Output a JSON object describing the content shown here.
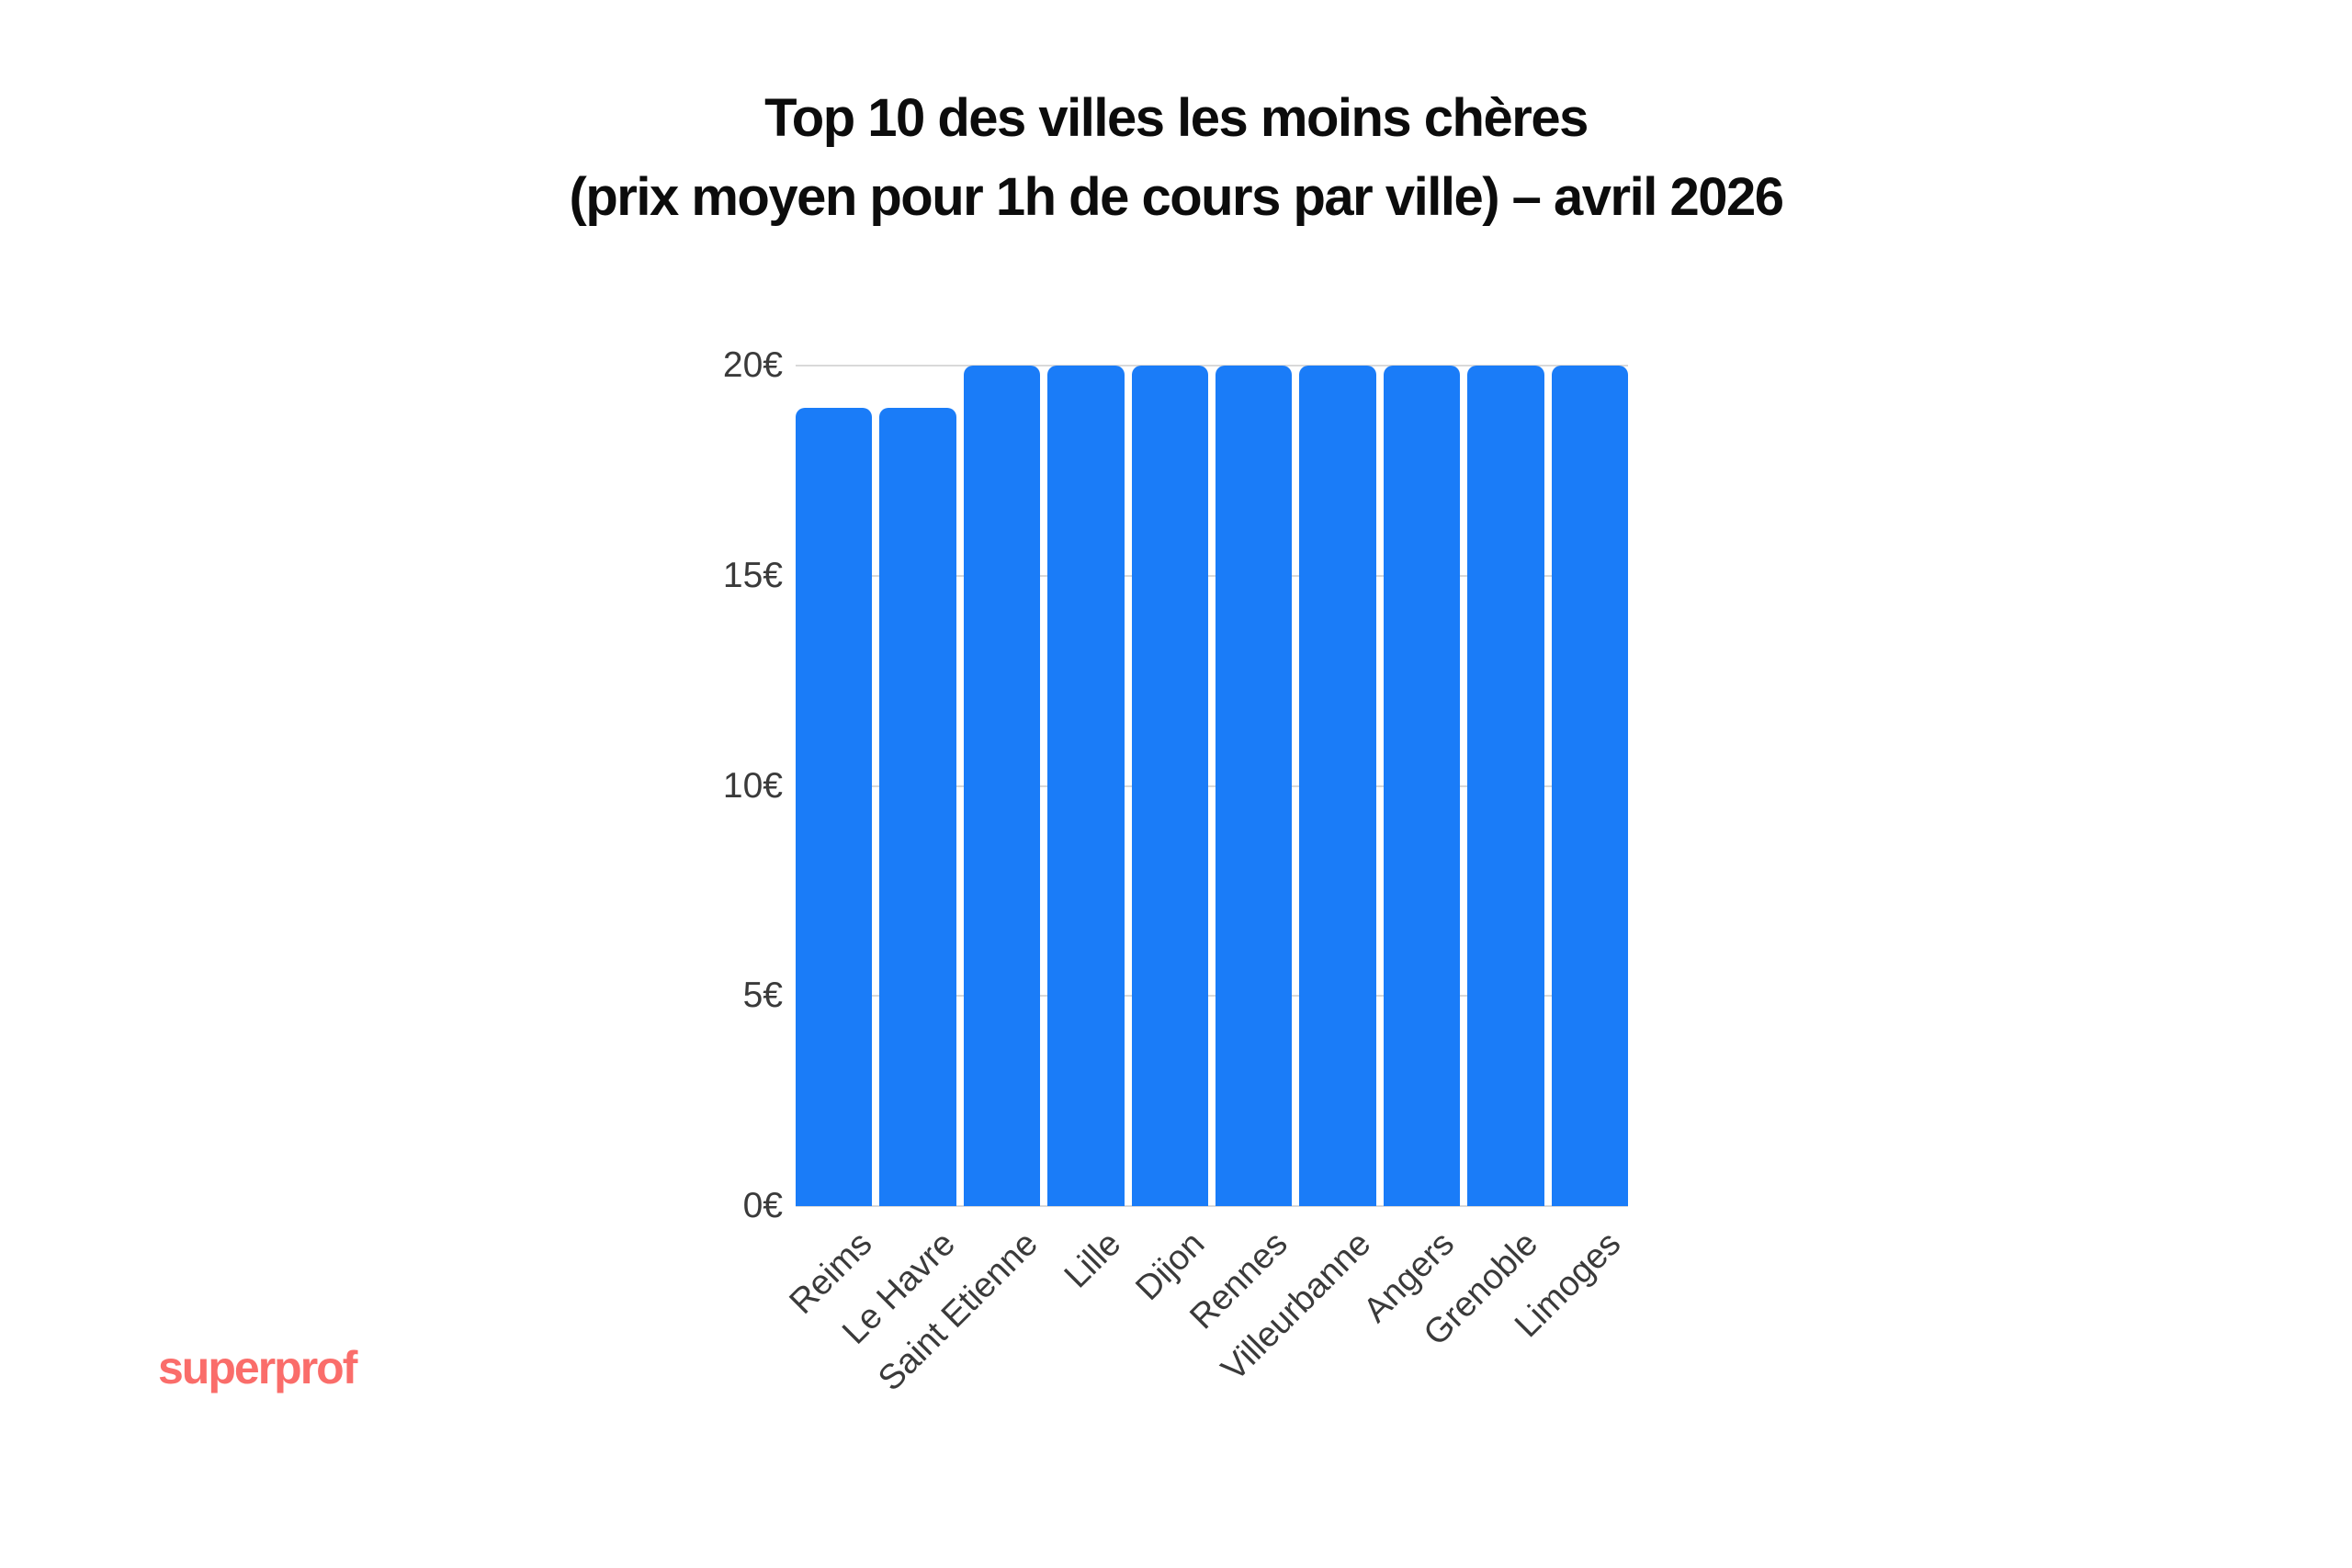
{
  "title": {
    "line1": "Top 10 des villes les moins chères",
    "line2": "(prix moyen pour 1h de cours par ville) – avril 2026"
  },
  "branding": {
    "logo_text": "superprof",
    "logo_color": "#fa6d6a"
  },
  "chart_data": {
    "type": "bar",
    "title": "Top 10 des villes les moins chères (prix moyen pour 1h de cours par ville) – avril 2026",
    "categories": [
      "Reims",
      "Le Havre",
      "Saint Etienne",
      "Lille",
      "Dijon",
      "Rennes",
      "Villeurbanne",
      "Angers",
      "Grenoble",
      "Limoges"
    ],
    "values": [
      19,
      19,
      20,
      20,
      20,
      20,
      20,
      20,
      20,
      20
    ],
    "unit": "€",
    "xlabel": "",
    "ylabel": "",
    "ylim": [
      0,
      20
    ],
    "y_ticks": [
      0,
      5,
      10,
      15,
      20
    ],
    "y_tick_labels": [
      "0€",
      "5€",
      "10€",
      "15€",
      "20€"
    ],
    "grid": "horizontal",
    "legend": "none",
    "x_label_rotation_deg": 45,
    "bar_color": "#1a7cf8",
    "grid_color": "#d9d9d9",
    "tick_label_color": "#3a3a3a",
    "title_color": "#0c0c0c"
  }
}
